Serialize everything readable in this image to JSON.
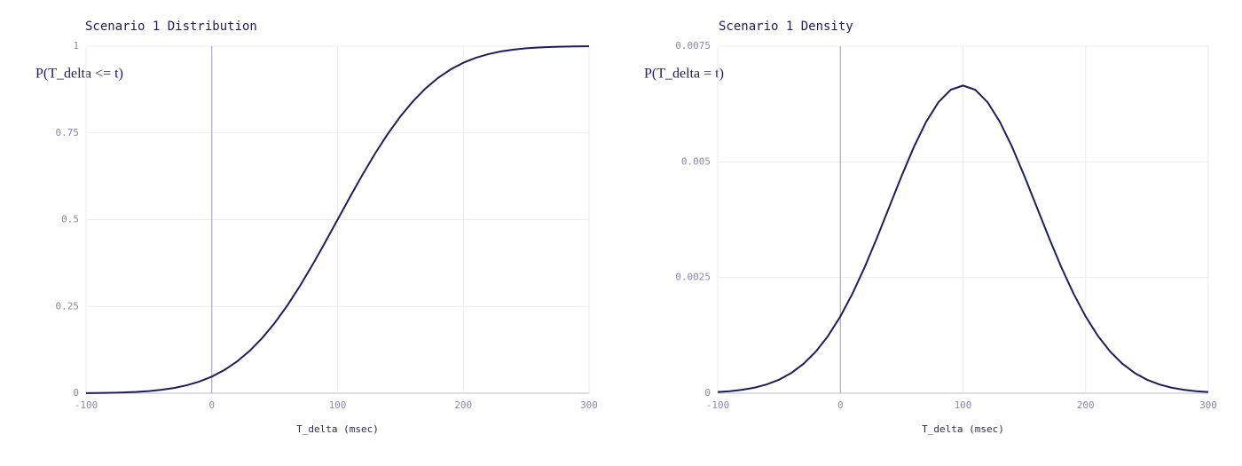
{
  "chart_data": [
    {
      "type": "line",
      "title": "Scenario 1 Distribution",
      "xlabel": "T_delta (msec)",
      "ylabel": "P(T_delta <= t)",
      "x": [
        -100,
        -90,
        -80,
        -70,
        -60,
        -50,
        -40,
        -30,
        -20,
        -10,
        0,
        10,
        20,
        30,
        40,
        50,
        60,
        70,
        80,
        90,
        100,
        110,
        120,
        130,
        140,
        150,
        160,
        170,
        180,
        190,
        200,
        210,
        220,
        230,
        240,
        250,
        260,
        270,
        280,
        290,
        300
      ],
      "series": [
        {
          "name": "P(T_delta <= t)",
          "color": "#1f1d5c",
          "values": [
            0.0004,
            0.0008,
            0.0013,
            0.0023,
            0.0038,
            0.0062,
            0.0098,
            0.0151,
            0.0228,
            0.0334,
            0.0478,
            0.0668,
            0.0912,
            0.1217,
            0.1587,
            0.2023,
            0.2525,
            0.3085,
            0.3694,
            0.4338,
            0.5,
            0.5662,
            0.6306,
            0.6915,
            0.7475,
            0.7977,
            0.8413,
            0.8783,
            0.9088,
            0.9332,
            0.9522,
            0.9666,
            0.9772,
            0.9849,
            0.9902,
            0.9938,
            0.9962,
            0.9977,
            0.9987,
            0.9992,
            0.9996
          ]
        }
      ],
      "xlim": [
        -100,
        300
      ],
      "xticks": [
        -100,
        0,
        100,
        200,
        300
      ],
      "ylim": [
        0,
        1
      ],
      "yticks": [
        0,
        0.25,
        0.5,
        0.75,
        1
      ],
      "grid": true
    },
    {
      "type": "line",
      "title": "Scenario 1 Density",
      "xlabel": "T_delta (msec)",
      "ylabel": "P(T_delta = t)",
      "x": [
        -100,
        -90,
        -80,
        -70,
        -60,
        -50,
        -40,
        -30,
        -20,
        -10,
        0,
        10,
        20,
        30,
        40,
        50,
        60,
        70,
        80,
        90,
        100,
        110,
        120,
        130,
        140,
        150,
        160,
        170,
        180,
        190,
        200,
        210,
        220,
        230,
        240,
        250,
        260,
        270,
        280,
        290,
        300
      ],
      "series": [
        {
          "name": "P(T_delta = t)",
          "color": "#1f1d5c",
          "values": [
            2.6e-05,
            4.4e-05,
            7.4e-05,
            0.00012,
            0.00019,
            0.000292,
            0.000437,
            0.000636,
            0.0009,
            0.001238,
            0.001658,
            0.002159,
            0.002733,
            0.003367,
            0.004033,
            0.004698,
            0.005324,
            0.005868,
            0.00629,
            0.006557,
            0.006649,
            0.006557,
            0.00629,
            0.005868,
            0.005324,
            0.004698,
            0.004033,
            0.003367,
            0.002733,
            0.002159,
            0.001658,
            0.001238,
            0.0009,
            0.000636,
            0.000437,
            0.000292,
            0.00019,
            0.00012,
            7.4e-05,
            4.4e-05,
            2.6e-05
          ]
        }
      ],
      "xlim": [
        -100,
        300
      ],
      "xticks": [
        -100,
        0,
        100,
        200,
        300
      ],
      "ylim": [
        0,
        0.0075
      ],
      "yticks": [
        0,
        0.0025,
        0.005,
        0.0075
      ],
      "grid": true
    }
  ]
}
